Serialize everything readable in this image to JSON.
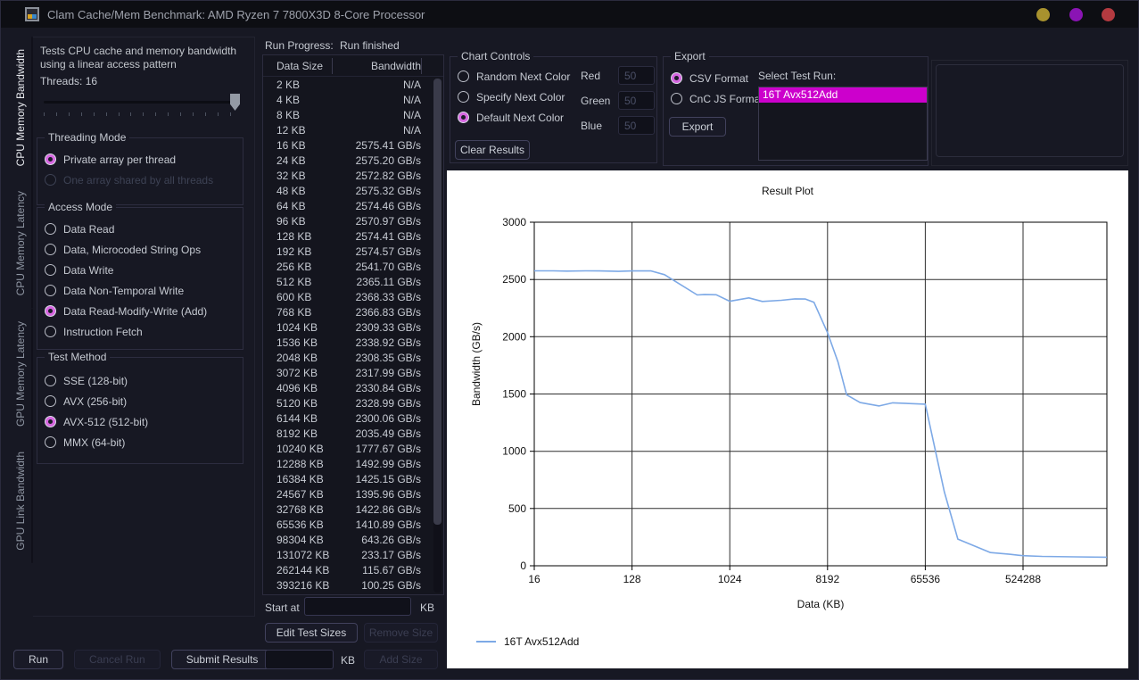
{
  "window": {
    "title": "Clam Cache/Mem Benchmark: AMD Ryzen 7 7800X3D 8-Core Processor",
    "traffic_lights": [
      "#a8922e",
      "#8a14b4",
      "#b43a40"
    ]
  },
  "colors": {
    "accent_selection": "#cc00cc",
    "radio_selected": "#d666e0",
    "chart_line": "#7da9e6"
  },
  "sidebar": {
    "tabs": [
      {
        "label": "CPU Memory Bandwidth",
        "active": true
      },
      {
        "label": "CPU Memory Latency",
        "active": false
      },
      {
        "label": "GPU Memory Latency",
        "active": false
      },
      {
        "label": "GPU Link Bandwidth",
        "active": false
      }
    ]
  },
  "test_panel": {
    "description": "Tests CPU cache and memory bandwidth using a linear access pattern",
    "threads_label": "Threads: 16",
    "threading_mode": {
      "title": "Threading Mode",
      "options": [
        {
          "label": "Private array per thread",
          "selected": true,
          "disabled": false
        },
        {
          "label": "One array shared by all threads",
          "selected": false,
          "disabled": true
        }
      ]
    },
    "access_mode": {
      "title": "Access Mode",
      "options": [
        {
          "label": "Data Read",
          "selected": false,
          "disabled": false
        },
        {
          "label": "Data, Microcoded String Ops",
          "selected": false,
          "disabled": false
        },
        {
          "label": "Data Write",
          "selected": false,
          "disabled": false
        },
        {
          "label": "Data Non-Temporal Write",
          "selected": false,
          "disabled": false
        },
        {
          "label": "Data Read-Modify-Write (Add)",
          "selected": true,
          "disabled": false
        },
        {
          "label": "Instruction Fetch",
          "selected": false,
          "disabled": false
        }
      ]
    },
    "test_method": {
      "title": "Test Method",
      "options": [
        {
          "label": "SSE (128-bit)",
          "selected": false,
          "disabled": false
        },
        {
          "label": "AVX (256-bit)",
          "selected": false,
          "disabled": false
        },
        {
          "label": "AVX-512 (512-bit)",
          "selected": true,
          "disabled": false
        },
        {
          "label": "MMX (64-bit)",
          "selected": false,
          "disabled": false
        }
      ]
    },
    "buttons": [
      {
        "label": "Run",
        "disabled": false
      },
      {
        "label": "Cancel Run",
        "disabled": true
      },
      {
        "label": "Submit Results",
        "disabled": false
      }
    ]
  },
  "progress": {
    "label": "Run Progress:",
    "status": "Run finished"
  },
  "results_table": {
    "columns": [
      "Data Size",
      "Bandwidth"
    ],
    "rows": [
      [
        "2 KB",
        "N/A"
      ],
      [
        "4 KB",
        "N/A"
      ],
      [
        "8 KB",
        "N/A"
      ],
      [
        "12 KB",
        "N/A"
      ],
      [
        "16 KB",
        "2575.41 GB/s"
      ],
      [
        "24 KB",
        "2575.20 GB/s"
      ],
      [
        "32 KB",
        "2572.82 GB/s"
      ],
      [
        "48 KB",
        "2575.32 GB/s"
      ],
      [
        "64 KB",
        "2574.46 GB/s"
      ],
      [
        "96 KB",
        "2570.97 GB/s"
      ],
      [
        "128 KB",
        "2574.41 GB/s"
      ],
      [
        "192 KB",
        "2574.57 GB/s"
      ],
      [
        "256 KB",
        "2541.70 GB/s"
      ],
      [
        "512 KB",
        "2365.11 GB/s"
      ],
      [
        "600 KB",
        "2368.33 GB/s"
      ],
      [
        "768 KB",
        "2366.83 GB/s"
      ],
      [
        "1024 KB",
        "2309.33 GB/s"
      ],
      [
        "1536 KB",
        "2338.92 GB/s"
      ],
      [
        "2048 KB",
        "2308.35 GB/s"
      ],
      [
        "3072 KB",
        "2317.99 GB/s"
      ],
      [
        "4096 KB",
        "2330.84 GB/s"
      ],
      [
        "5120 KB",
        "2328.99 GB/s"
      ],
      [
        "6144 KB",
        "2300.06 GB/s"
      ],
      [
        "8192 KB",
        "2035.49 GB/s"
      ],
      [
        "10240 KB",
        "1777.67 GB/s"
      ],
      [
        "12288 KB",
        "1492.99 GB/s"
      ],
      [
        "16384 KB",
        "1425.15 GB/s"
      ],
      [
        "24567 KB",
        "1395.96 GB/s"
      ],
      [
        "32768 KB",
        "1422.86 GB/s"
      ],
      [
        "65536 KB",
        "1410.89 GB/s"
      ],
      [
        "98304 KB",
        "643.26 GB/s"
      ],
      [
        "131072 KB",
        "233.17 GB/s"
      ],
      [
        "262144 KB",
        "115.67 GB/s"
      ],
      [
        "393216 KB",
        "100.25 GB/s"
      ]
    ]
  },
  "size_editor": {
    "start_at_label": "Start at",
    "start_at_value": "",
    "start_unit": "KB",
    "edit_button": "Edit Test Sizes",
    "remove_button": "Remove Size",
    "add_value": "",
    "add_unit": "KB",
    "add_button": "Add Size"
  },
  "chart_controls": {
    "title": "Chart Controls",
    "options": [
      {
        "label": "Random Next Color",
        "selected": false,
        "disabled": false
      },
      {
        "label": "Specify Next Color",
        "selected": false,
        "disabled": false
      },
      {
        "label": "Default Next Color",
        "selected": true,
        "disabled": false
      }
    ],
    "rgb": [
      {
        "label": "Red",
        "value": "50",
        "disabled": true
      },
      {
        "label": "Green",
        "value": "50",
        "disabled": true
      },
      {
        "label": "Blue",
        "value": "50",
        "disabled": true
      }
    ],
    "clear_button": "Clear Results"
  },
  "export": {
    "title": "Export",
    "options": [
      {
        "label": "CSV Format",
        "selected": true,
        "disabled": false
      },
      {
        "label": "CnC JS Format",
        "selected": false,
        "disabled": false
      }
    ],
    "export_button": "Export",
    "select_label": "Select Test Run:",
    "runs": [
      {
        "label": "16T Avx512Add",
        "selected": true
      }
    ]
  },
  "chart_data": {
    "type": "line",
    "title": "Result Plot",
    "xlabel": "Data (KB)",
    "ylabel": "Bandwidth (GB/s)",
    "x_scale": "log8",
    "x_ticks": [
      16,
      128,
      1024,
      8192,
      65536,
      524288
    ],
    "xlim": [
      16,
      3120000
    ],
    "ylim": [
      0,
      3000
    ],
    "y_ticks": [
      0,
      500,
      1000,
      1500,
      2000,
      2500,
      3000
    ],
    "grid": true,
    "legend_position": "bottom-left",
    "series": [
      {
        "name": "16T Avx512Add",
        "color": "#7da9e6",
        "x": [
          16,
          24,
          32,
          48,
          64,
          96,
          128,
          192,
          256,
          512,
          600,
          768,
          1024,
          1536,
          2048,
          3072,
          4096,
          5120,
          6144,
          8192,
          10240,
          12288,
          16384,
          24567,
          32768,
          65536,
          98304,
          131072,
          262144,
          393216,
          524288,
          786432,
          1572864,
          3120000
        ],
        "y": [
          2575.41,
          2575.2,
          2572.82,
          2575.32,
          2574.46,
          2570.97,
          2574.41,
          2574.57,
          2541.7,
          2365.11,
          2368.33,
          2366.83,
          2309.33,
          2338.92,
          2308.35,
          2317.99,
          2330.84,
          2328.99,
          2300.06,
          2035.49,
          1777.67,
          1492.99,
          1425.15,
          1395.96,
          1422.86,
          1410.89,
          643.26,
          233.17,
          115.67,
          100.25,
          88,
          82,
          78,
          75
        ]
      }
    ]
  }
}
